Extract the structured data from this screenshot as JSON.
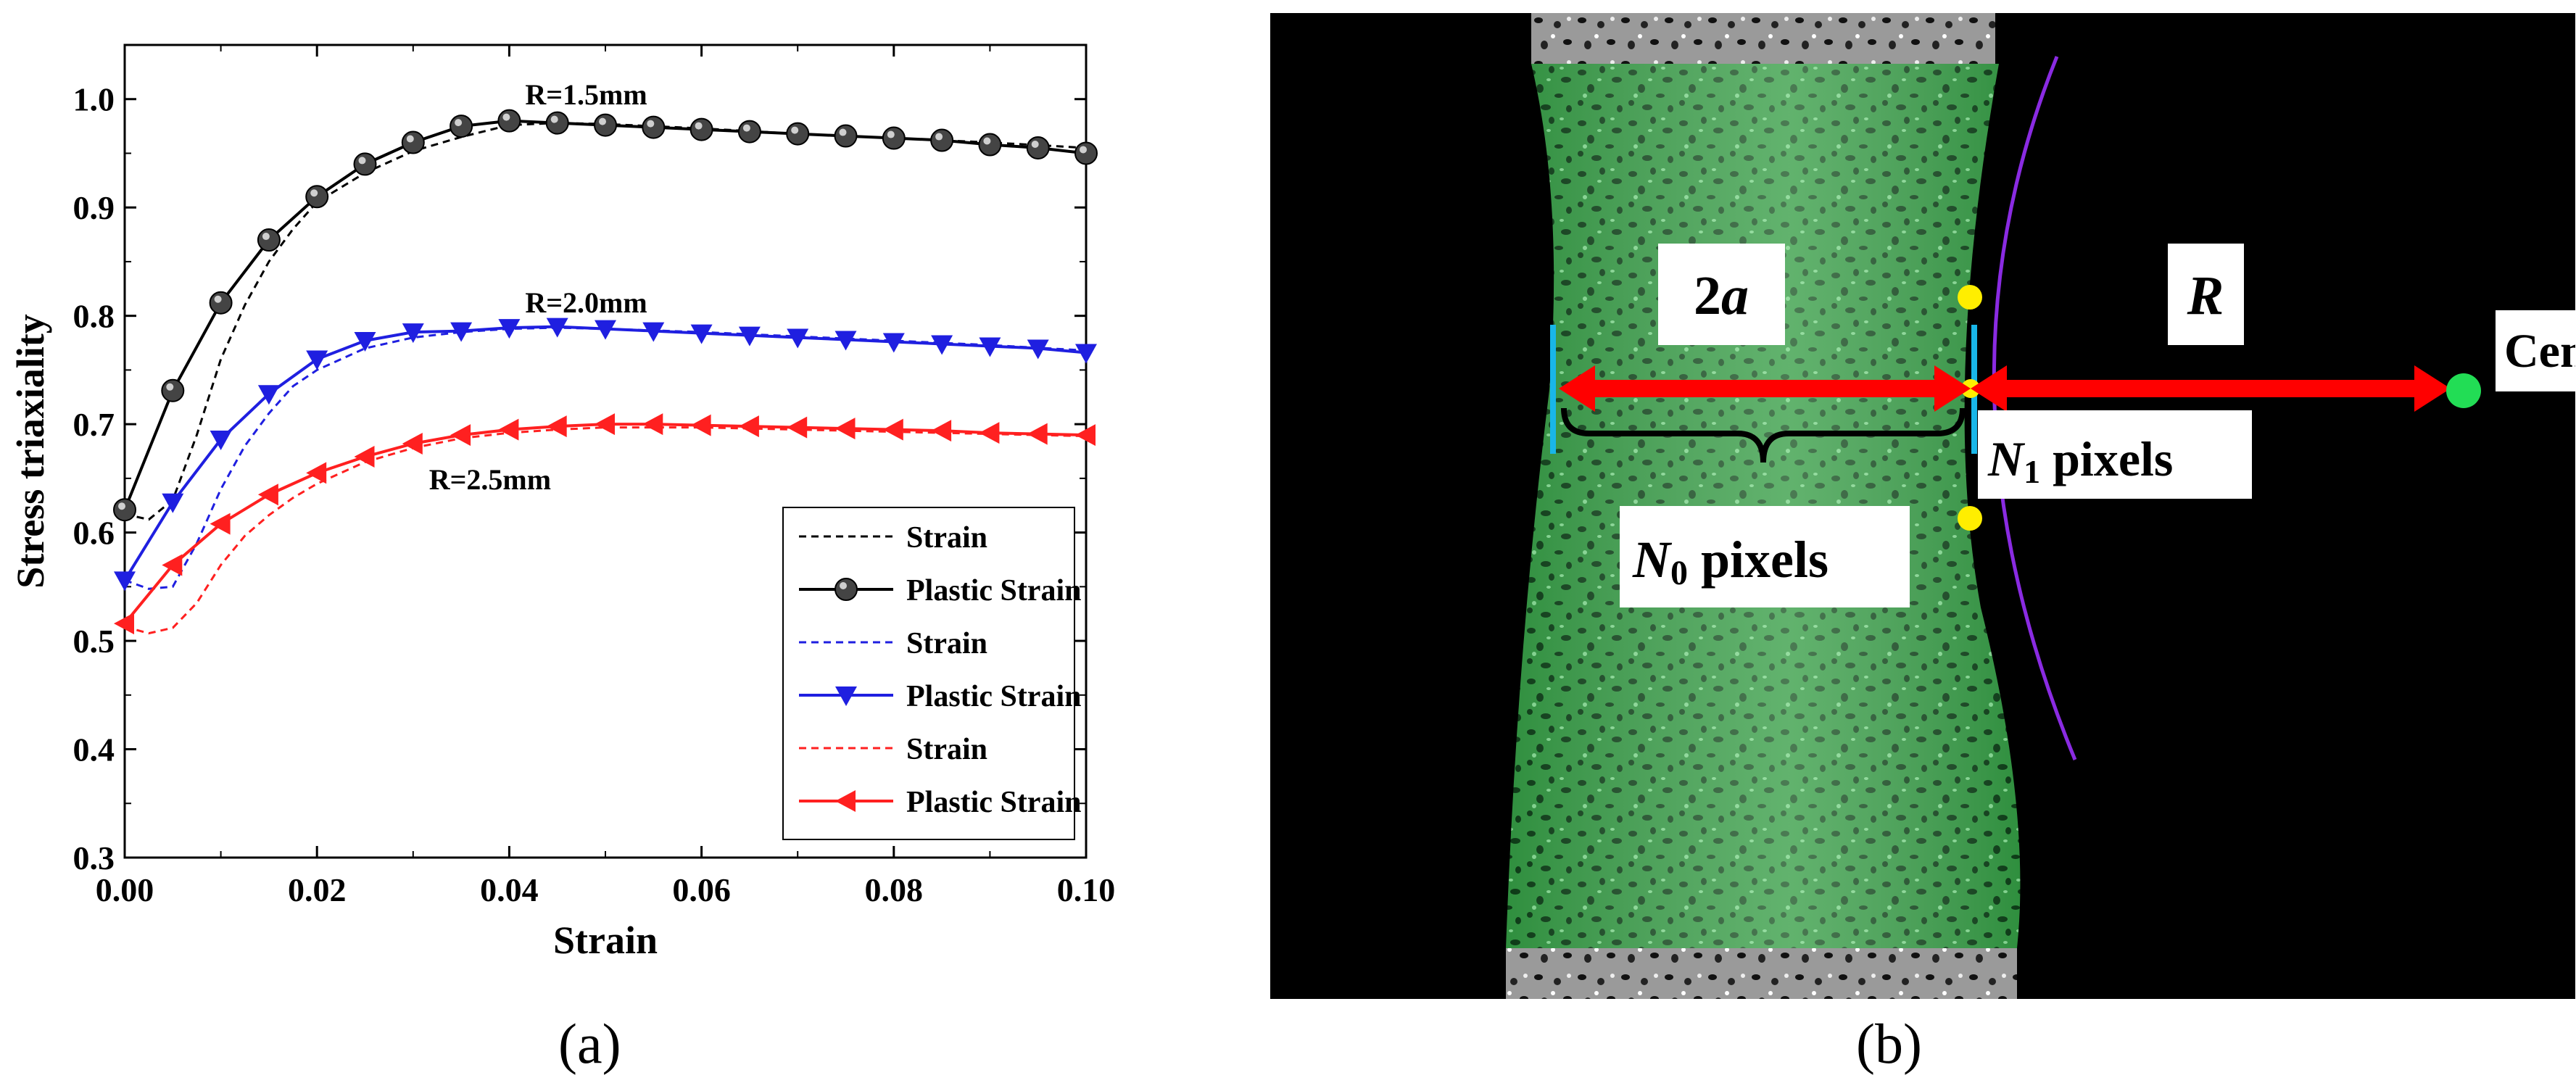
{
  "chart_data": {
    "type": "line",
    "xlabel": "Strain",
    "ylabel": "Stress triaxiality",
    "xlim": [
      0.0,
      0.1
    ],
    "ylim": [
      0.3,
      1.05
    ],
    "x_ticks": [
      "0.00",
      "0.02",
      "0.04",
      "0.06",
      "0.08",
      "0.10"
    ],
    "y_ticks": [
      "0.3",
      "0.4",
      "0.5",
      "0.6",
      "0.7",
      "0.8",
      "0.9",
      "1.0"
    ],
    "grid": false,
    "legend_position": "bottom-right",
    "annotations": [
      {
        "text": "R=1.5mm",
        "x": 0.048,
        "y": 0.995
      },
      {
        "text": "R=2.0mm",
        "x": 0.048,
        "y": 0.803
      },
      {
        "text": "R=2.5mm",
        "x": 0.038,
        "y": 0.64
      }
    ],
    "series": [
      {
        "name": "Strain",
        "color": "#000000",
        "style": "dashed",
        "marker": "none",
        "x": [
          0.0,
          0.0025,
          0.005,
          0.0075,
          0.01,
          0.0125,
          0.015,
          0.0175,
          0.02,
          0.025,
          0.03,
          0.035,
          0.04,
          0.045,
          0.05,
          0.06,
          0.07,
          0.08,
          0.09,
          0.1
        ],
        "y": [
          0.617,
          0.612,
          0.63,
          0.69,
          0.76,
          0.81,
          0.85,
          0.88,
          0.905,
          0.932,
          0.952,
          0.965,
          0.976,
          0.978,
          0.977,
          0.973,
          0.968,
          0.964,
          0.96,
          0.955
        ]
      },
      {
        "name": "Plastic Strain",
        "color": "#000000",
        "style": "solid",
        "marker": "circle",
        "x": [
          0.0,
          0.005,
          0.01,
          0.015,
          0.02,
          0.025,
          0.03,
          0.035,
          0.04,
          0.045,
          0.05,
          0.055,
          0.06,
          0.065,
          0.07,
          0.075,
          0.08,
          0.085,
          0.09,
          0.095,
          0.1
        ],
        "y": [
          0.621,
          0.731,
          0.812,
          0.87,
          0.91,
          0.94,
          0.96,
          0.975,
          0.98,
          0.978,
          0.976,
          0.974,
          0.972,
          0.97,
          0.968,
          0.966,
          0.964,
          0.962,
          0.958,
          0.955,
          0.95
        ]
      },
      {
        "name": "Strain",
        "color": "#1f1fe0",
        "style": "dashed",
        "marker": "none",
        "x": [
          0.0,
          0.0025,
          0.005,
          0.0075,
          0.01,
          0.0125,
          0.015,
          0.0175,
          0.02,
          0.025,
          0.03,
          0.035,
          0.04,
          0.045,
          0.05,
          0.06,
          0.07,
          0.08,
          0.09,
          0.1
        ],
        "y": [
          0.556,
          0.548,
          0.55,
          0.59,
          0.64,
          0.68,
          0.71,
          0.735,
          0.75,
          0.77,
          0.78,
          0.785,
          0.788,
          0.789,
          0.788,
          0.785,
          0.781,
          0.777,
          0.773,
          0.768
        ]
      },
      {
        "name": "Plastic Strain",
        "color": "#1f1fe0",
        "style": "solid",
        "marker": "triangle-down",
        "x": [
          0.0,
          0.005,
          0.01,
          0.015,
          0.02,
          0.025,
          0.03,
          0.035,
          0.04,
          0.045,
          0.05,
          0.055,
          0.06,
          0.065,
          0.07,
          0.075,
          0.08,
          0.085,
          0.09,
          0.095,
          0.1
        ],
        "y": [
          0.556,
          0.628,
          0.686,
          0.728,
          0.76,
          0.777,
          0.785,
          0.786,
          0.789,
          0.79,
          0.788,
          0.786,
          0.784,
          0.782,
          0.78,
          0.778,
          0.776,
          0.774,
          0.772,
          0.77,
          0.766
        ]
      },
      {
        "name": "Strain",
        "color": "#ff2020",
        "style": "dashed",
        "marker": "none",
        "x": [
          0.0,
          0.0025,
          0.005,
          0.0075,
          0.01,
          0.0125,
          0.015,
          0.0175,
          0.02,
          0.025,
          0.03,
          0.035,
          0.04,
          0.045,
          0.05,
          0.06,
          0.07,
          0.08,
          0.09,
          0.1
        ],
        "y": [
          0.513,
          0.507,
          0.512,
          0.535,
          0.57,
          0.597,
          0.616,
          0.632,
          0.645,
          0.665,
          0.678,
          0.687,
          0.692,
          0.695,
          0.697,
          0.697,
          0.695,
          0.693,
          0.691,
          0.689
        ]
      },
      {
        "name": "Plastic Strain",
        "color": "#ff2020",
        "style": "solid",
        "marker": "triangle-left",
        "x": [
          0.0,
          0.005,
          0.01,
          0.015,
          0.02,
          0.025,
          0.03,
          0.035,
          0.04,
          0.045,
          0.05,
          0.055,
          0.06,
          0.065,
          0.07,
          0.075,
          0.08,
          0.085,
          0.09,
          0.095,
          0.1
        ],
        "y": [
          0.516,
          0.57,
          0.608,
          0.635,
          0.655,
          0.67,
          0.682,
          0.69,
          0.695,
          0.698,
          0.7,
          0.7,
          0.699,
          0.698,
          0.697,
          0.696,
          0.695,
          0.694,
          0.692,
          0.691,
          0.69
        ]
      }
    ]
  },
  "photo": {
    "labels": {
      "two_a": "2a",
      "R": "R",
      "center": "Center",
      "n1_pixels": "N1 pixels",
      "n0_pixels": "N0 pixels"
    },
    "colors": {
      "background": "#000000",
      "specimen_green": "#2f8f3e",
      "arrow": "#ff0000",
      "circle_arc": "#8a2be2",
      "edge_lines": "#19b6e8",
      "edge_points": "#ffee00",
      "center_point": "#22dd55"
    }
  },
  "captions": {
    "a": "(a)",
    "b": "(b)"
  }
}
